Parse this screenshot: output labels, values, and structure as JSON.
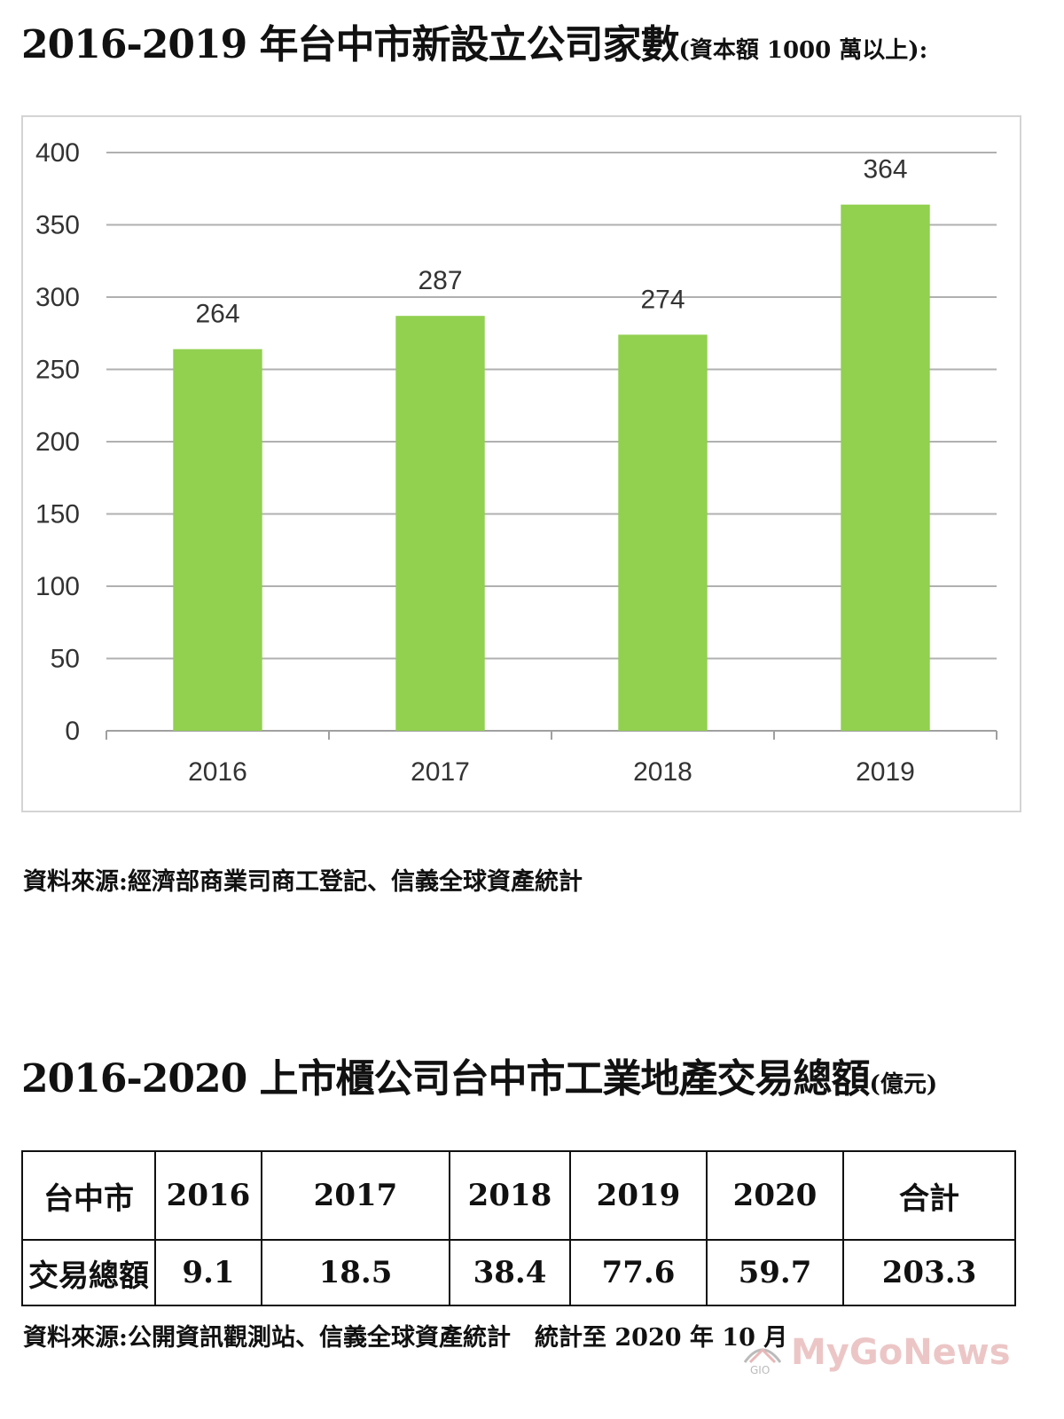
{
  "title1": {
    "main": "2016-2019 年台中市新設立公司家數",
    "sub": "(資本額 1000 萬以上):"
  },
  "chart_data": {
    "type": "bar",
    "categories": [
      "2016",
      "2017",
      "2018",
      "2019"
    ],
    "values": [
      264,
      287,
      274,
      364
    ],
    "data_labels": [
      "264",
      "287",
      "274",
      "364"
    ],
    "y_ticks": [
      "0",
      "50",
      "100",
      "150",
      "200",
      "250",
      "300",
      "350",
      "400"
    ],
    "ylim": [
      0,
      400
    ],
    "bar_color": "#92d050",
    "grid": true,
    "legend": "none"
  },
  "source1": "資料來源:經濟部商業司商工登記、信義全球資產統計",
  "title2": {
    "main": "2016-2020 上市櫃公司台中市工業地產交易總額",
    "sub": "(億元)"
  },
  "table": {
    "header": [
      "台中市",
      "2016",
      "2017",
      "2018",
      "2019",
      "2020",
      "合計"
    ],
    "row": [
      "交易總額",
      "9.1",
      "18.5",
      "38.4",
      "77.6",
      "59.7",
      "203.3"
    ]
  },
  "source2": "資料來源:公開資訊觀測站、信義全球資產統計　統計至 2020 年 10 月",
  "watermark": {
    "brand": "MyGoNews",
    "logo_text": "GIO"
  }
}
